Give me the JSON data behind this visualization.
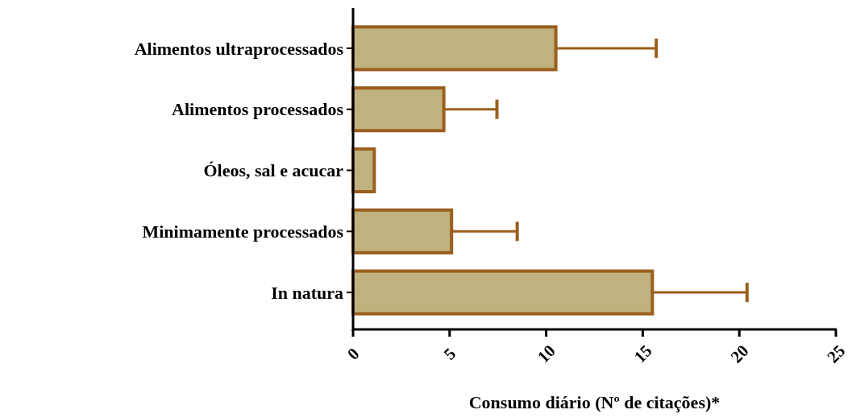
{
  "chart_data": {
    "type": "bar",
    "orientation": "horizontal",
    "xlabel": "Consumo diário (Nº de citações)*",
    "categories": [
      "Alimentos ultraprocessados",
      "Alimentos processados",
      "Óleos, sal e acucar",
      "Minimamente processados",
      "In natura"
    ],
    "series": [
      {
        "color": "#c0b27e",
        "values": [
          10.5,
          4.7,
          1.1,
          5.1,
          15.5
        ],
        "errors": [
          [
            10.5,
            15.7
          ],
          [
            4.7,
            7.45
          ],
          null,
          [
            5.1,
            8.5
          ],
          [
            15.5,
            20.4
          ]
        ]
      }
    ],
    "xlim": [
      0,
      25
    ],
    "xticks": [
      0,
      5,
      10,
      15,
      20,
      25
    ],
    "grid": false
  }
}
